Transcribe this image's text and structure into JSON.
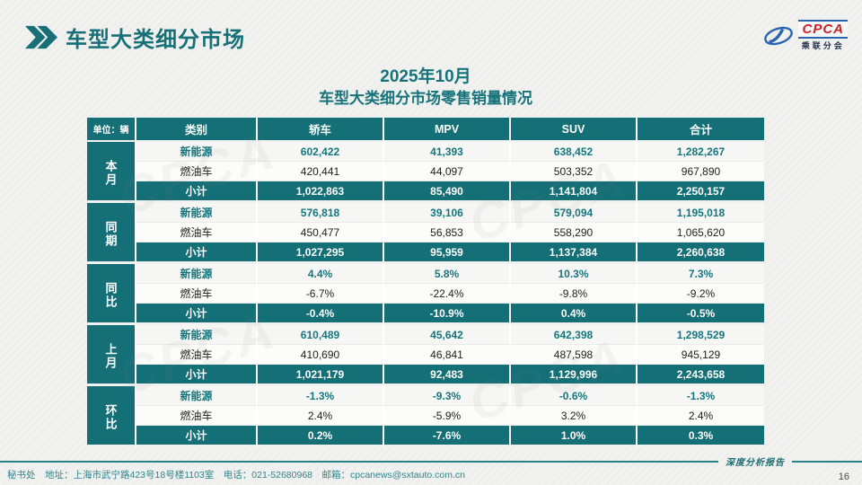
{
  "header": {
    "title": "车型大类细分市场"
  },
  "logo": {
    "acronym": "CPCA",
    "chinese_name": "乘联分会"
  },
  "subtitle": {
    "line1": "2025年10月",
    "line2": "车型大类细分市场零售销量情况"
  },
  "colors": {
    "primary_teal": "#156f77",
    "nev_text": "#16767e",
    "logo_red": "#cc2127",
    "logo_blue": "#2a63b0"
  },
  "chart_data": {
    "type": "table",
    "title": "2025年10月 车型大类细分市场零售销量情况",
    "unit": "单位：辆",
    "columns": [
      "类别",
      "轿车",
      "MPV",
      "SUV",
      "合计"
    ],
    "row_groups": [
      "本月",
      "同期",
      "同比",
      "上月",
      "环比"
    ]
  },
  "table": {
    "unit_label": "单位：辆",
    "col_headers": [
      {
        "key": "category",
        "label": "类别"
      },
      {
        "key": "sedan",
        "label": "轿车"
      },
      {
        "key": "mpv",
        "label": "MPV"
      },
      {
        "key": "suv",
        "label": "SUV"
      },
      {
        "key": "total",
        "label": "合计"
      }
    ],
    "groups": [
      {
        "key": "current-month",
        "name": "本月",
        "rows": [
          {
            "key": "nev",
            "label": "新能源",
            "values": [
              "602,422",
              "41,393",
              "638,452",
              "1,282,267"
            ]
          },
          {
            "key": "fuel",
            "label": "燃油车",
            "values": [
              "420,441",
              "44,097",
              "503,352",
              "967,890"
            ]
          },
          {
            "key": "subtotal",
            "label": "小计",
            "values": [
              "1,022,863",
              "85,490",
              "1,141,804",
              "2,250,157"
            ]
          }
        ]
      },
      {
        "key": "year-ago",
        "name": "同期",
        "rows": [
          {
            "key": "nev",
            "label": "新能源",
            "values": [
              "576,818",
              "39,106",
              "579,094",
              "1,195,018"
            ]
          },
          {
            "key": "fuel",
            "label": "燃油车",
            "values": [
              "450,477",
              "56,853",
              "558,290",
              "1,065,620"
            ]
          },
          {
            "key": "subtotal",
            "label": "小计",
            "values": [
              "1,027,295",
              "95,959",
              "1,137,384",
              "2,260,638"
            ]
          }
        ]
      },
      {
        "key": "yoy",
        "name": "同比",
        "rows": [
          {
            "key": "nev",
            "label": "新能源",
            "values": [
              "4.4%",
              "5.8%",
              "10.3%",
              "7.3%"
            ]
          },
          {
            "key": "fuel",
            "label": "燃油车",
            "values": [
              "-6.7%",
              "-22.4%",
              "-9.8%",
              "-9.2%"
            ]
          },
          {
            "key": "subtotal",
            "label": "小计",
            "values": [
              "-0.4%",
              "-10.9%",
              "0.4%",
              "-0.5%"
            ]
          }
        ]
      },
      {
        "key": "last-month",
        "name": "上月",
        "rows": [
          {
            "key": "nev",
            "label": "新能源",
            "values": [
              "610,489",
              "45,642",
              "642,398",
              "1,298,529"
            ]
          },
          {
            "key": "fuel",
            "label": "燃油车",
            "values": [
              "410,690",
              "46,841",
              "487,598",
              "945,129"
            ]
          },
          {
            "key": "subtotal",
            "label": "小计",
            "values": [
              "1,021,179",
              "92,483",
              "1,129,996",
              "2,243,658"
            ]
          }
        ]
      },
      {
        "key": "mom",
        "name": "环比",
        "rows": [
          {
            "key": "nev",
            "label": "新能源",
            "values": [
              "-1.3%",
              "-9.3%",
              "-0.6%",
              "-1.3%"
            ]
          },
          {
            "key": "fuel",
            "label": "燃油车",
            "values": [
              "2.4%",
              "-5.9%",
              "3.2%",
              "2.4%"
            ]
          },
          {
            "key": "subtotal",
            "label": "小计",
            "values": [
              "0.2%",
              "-7.6%",
              "1.0%",
              "0.3%"
            ]
          }
        ]
      }
    ]
  },
  "footer": {
    "contact": "秘书处　地址：上海市武宁路423号18号楼1103室　电话：021-52680968　邮箱：cpcanews@sxtauto.com.cn",
    "report_label": "深度分析报告",
    "page_number": "16"
  }
}
